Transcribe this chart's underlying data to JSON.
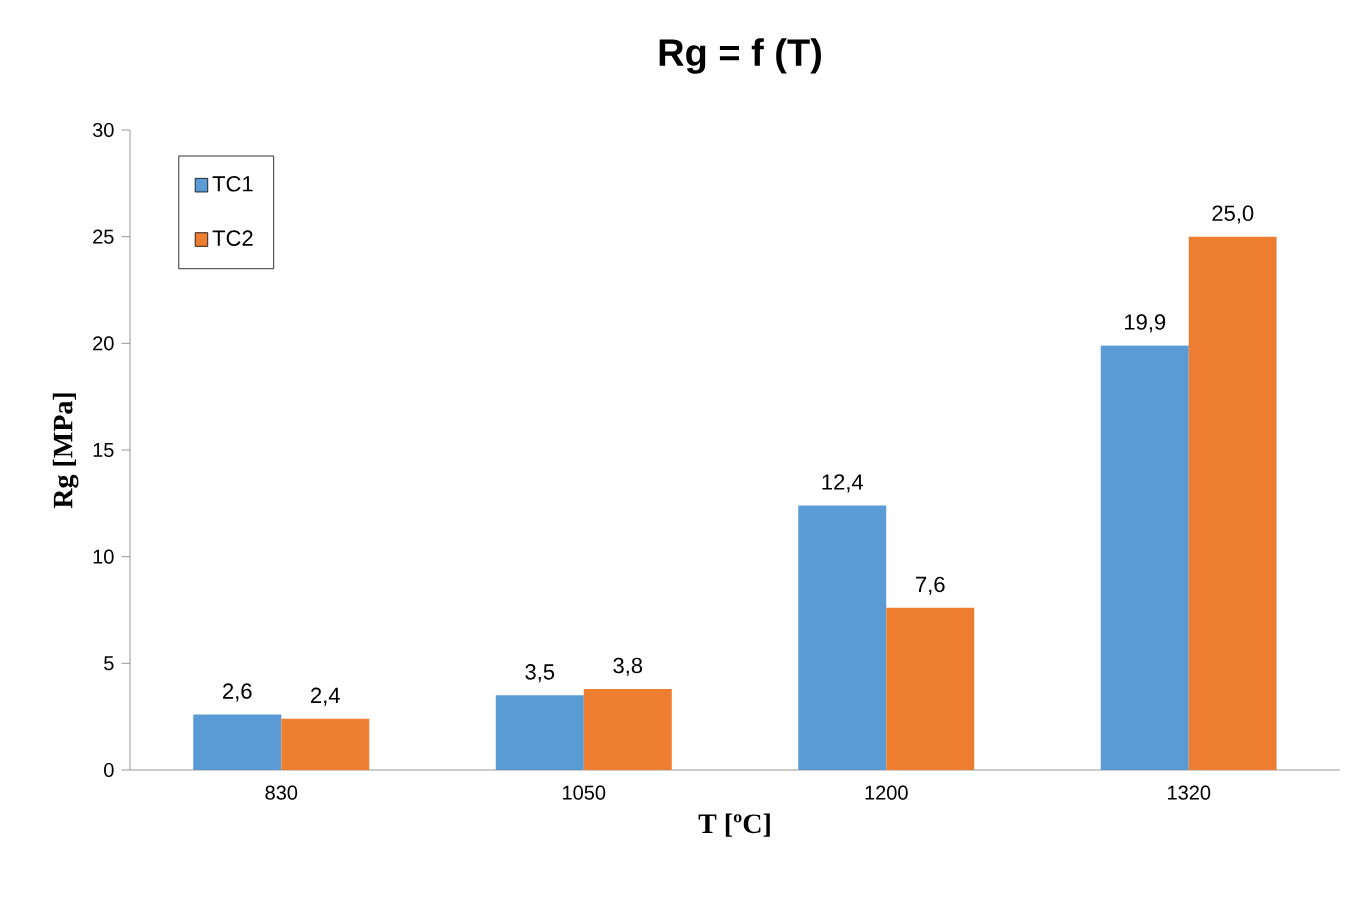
{
  "chart_data": {
    "type": "bar",
    "title": "Rg = f (T)",
    "xlabel": "T [ºC]",
    "ylabel": "Rg [MPa]",
    "categories": [
      "830",
      "1050",
      "1200",
      "1320"
    ],
    "series": [
      {
        "name": "TC1",
        "color": "#5b9bd5",
        "values": [
          2.6,
          3.5,
          12.4,
          19.9
        ],
        "value_labels": [
          "2,6",
          "3,5",
          "12,4",
          "19,9"
        ]
      },
      {
        "name": "TC2",
        "color": "#ed7d31",
        "values": [
          2.4,
          3.8,
          7.6,
          25.0
        ],
        "value_labels": [
          "2,4",
          "3,8",
          "7,6",
          "25,0"
        ]
      }
    ],
    "ylim": [
      0,
      30
    ],
    "yticks": [
      0,
      5,
      10,
      15,
      20,
      25,
      30
    ],
    "grid": false,
    "legend": "top left"
  }
}
